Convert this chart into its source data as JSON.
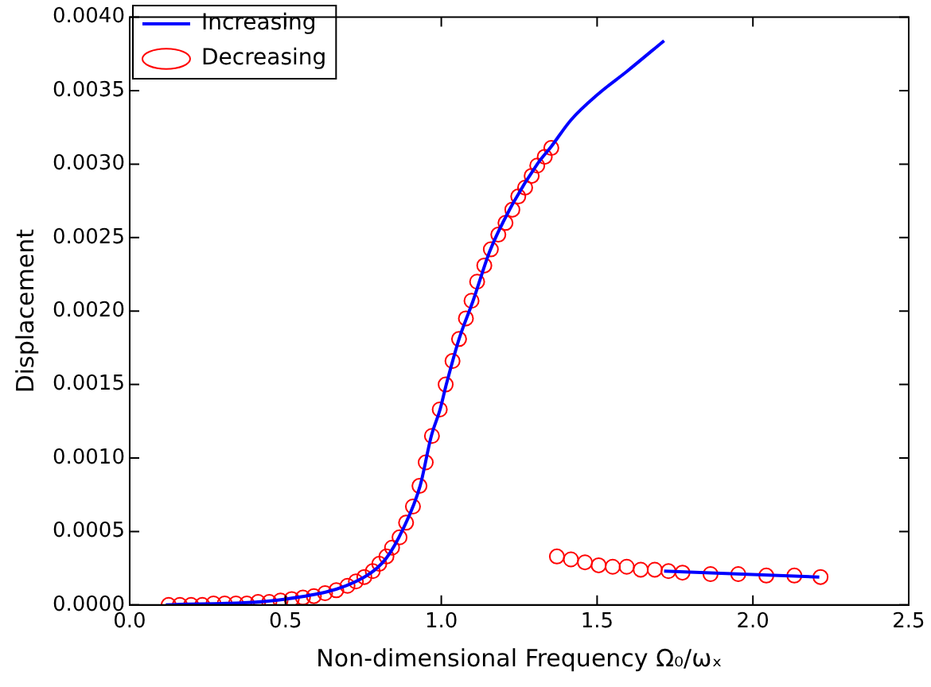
{
  "chart_data": {
    "type": "line",
    "xlabel": "Non-dimensional Frequency Ω₀/ωₓ",
    "ylabel": "Displacement",
    "xlim": [
      0,
      2.5
    ],
    "xticks": [
      {
        "value": 0,
        "label": "0.0"
      },
      {
        "value": 0.5,
        "label": "0.5"
      },
      {
        "value": 1,
        "label": "1.0"
      },
      {
        "value": 1.5,
        "label": "1.5"
      },
      {
        "value": 2,
        "label": "2.0"
      },
      {
        "value": 2.5,
        "label": "2.5"
      }
    ],
    "ylim": [
      0,
      0.004
    ],
    "yticks": [
      {
        "value": 0,
        "label": "0.0000"
      },
      {
        "value": 0.0005,
        "label": "0.0005"
      },
      {
        "value": 0.001,
        "label": "0.0010"
      },
      {
        "value": 0.0015,
        "label": "0.0015"
      },
      {
        "value": 0.002,
        "label": "0.0020"
      },
      {
        "value": 0.0025,
        "label": "0.0025"
      },
      {
        "value": 0.003,
        "label": "0.0030"
      },
      {
        "value": 0.0035,
        "label": "0.0035"
      },
      {
        "value": 0.004,
        "label": "0.0040"
      }
    ],
    "grid": false,
    "legend": "top left",
    "series": [
      {
        "name": "Increasing",
        "type": "line",
        "color": "#0000ff",
        "marker": "none",
        "line_style": "solid",
        "x": [
          0.116,
          0.5,
          0.753,
          0.824,
          0.878,
          0.932,
          0.968,
          0.996,
          1.016,
          1.057,
          1.102,
          1.156,
          1.219,
          1.308,
          1.353,
          1.416,
          1.505,
          1.595,
          1.715
        ],
        "values": [
          0,
          4e-05,
          0.00019,
          0.00032,
          0.00052,
          0.00081,
          0.00115,
          0.00133,
          0.0015,
          0.00181,
          0.00207,
          0.00241,
          0.00269,
          0.003,
          0.00312,
          0.0033,
          0.00348,
          0.00363,
          0.00384
        ]
      },
      {
        "type": "line",
        "color": "#0000ff",
        "marker": "none",
        "line_style": "solid",
        "x": [
          1.715,
          2.213
        ],
        "values": [
          0.00023,
          0.00019
        ]
      },
      {
        "name": "Decreasing",
        "type": "scatter",
        "color": "#ff0000",
        "marker": "circle",
        "x": [
          2.217,
          2.133,
          2.043,
          1.953,
          1.864,
          1.774,
          1.729,
          1.685,
          1.64,
          1.595,
          1.55,
          1.505,
          1.461,
          1.416,
          1.371,
          1.353,
          1.332,
          1.308,
          1.29,
          1.269,
          1.247,
          1.228,
          1.206,
          1.183,
          1.159,
          1.138,
          1.115,
          1.097,
          1.079,
          1.057,
          1.036,
          1.014,
          0.995,
          0.97,
          0.95,
          0.93,
          0.909,
          0.887,
          0.866,
          0.842,
          0.824,
          0.801,
          0.78,
          0.753,
          0.726,
          0.699,
          0.663,
          0.627,
          0.591,
          0.556,
          0.52,
          0.484,
          0.448,
          0.412,
          0.376,
          0.341,
          0.305,
          0.269,
          0.233,
          0.197,
          0.161,
          0.125
        ],
        "values": [
          0.00019,
          0.0002,
          0.0002,
          0.00021,
          0.00021,
          0.00022,
          0.00023,
          0.00024,
          0.00024,
          0.00026,
          0.00026,
          0.00027,
          0.00029,
          0.00031,
          0.00033,
          0.00311,
          0.00305,
          0.00299,
          0.00292,
          0.00284,
          0.00278,
          0.00269,
          0.0026,
          0.00252,
          0.00242,
          0.00231,
          0.0022,
          0.00207,
          0.00195,
          0.00181,
          0.00166,
          0.0015,
          0.00133,
          0.00115,
          0.00097,
          0.00081,
          0.00067,
          0.00056,
          0.00046,
          0.00039,
          0.00033,
          0.00028,
          0.00023,
          0.00019,
          0.00016,
          0.00013,
          0.0001,
          8e-05,
          6e-05,
          5e-05,
          4e-05,
          3e-05,
          2e-05,
          2e-05,
          1e-05,
          1e-05,
          1e-05,
          1e-05,
          0,
          0,
          0,
          0
        ]
      }
    ]
  }
}
